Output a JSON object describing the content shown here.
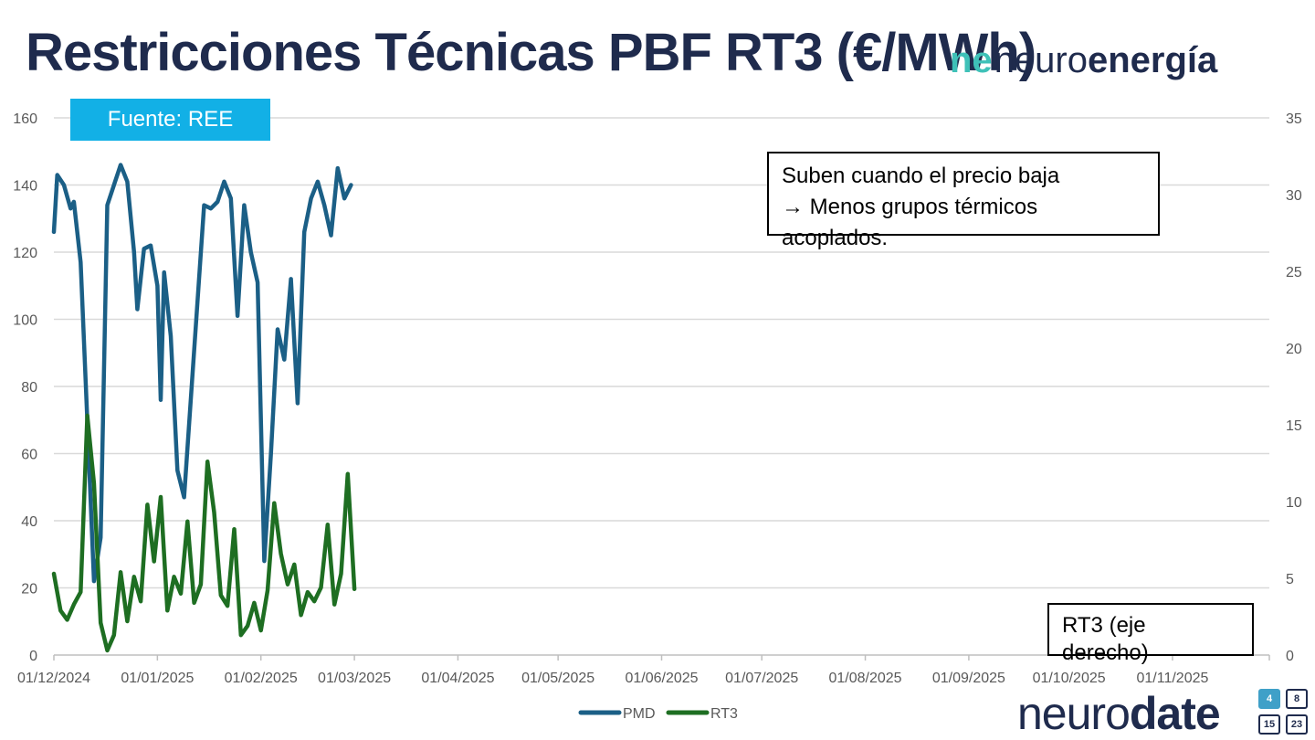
{
  "header": {
    "title": "Restricciones Técnicas PBF RT3 (€/MWh)",
    "brand_prefix": "ne",
    "brand_light": "neuro",
    "brand_bold": "energía"
  },
  "source_label": "Fuente: REE",
  "annotation": {
    "line1": "Suben cuando el precio baja",
    "line2": "→ Menos grupos térmicos",
    "line3": "acoplados."
  },
  "axis_note": {
    "line1": "RT3 (eje",
    "line2": "derecho)"
  },
  "footer": {
    "logo_light": "neuro",
    "logo_bold": "date",
    "calendar": [
      "4",
      "8",
      "15",
      "23"
    ]
  },
  "colors": {
    "pmd": "#1b5f86",
    "rt3": "#1e6e22",
    "grid": "#d9d9d9",
    "axis_text": "#595959",
    "brand_dark": "#1f2b4d",
    "accent_blue": "#12b0e6"
  },
  "chart_data": {
    "type": "line",
    "title": "Restricciones Técnicas PBF RT3 (€/MWh)",
    "x_tick_labels": [
      "01/12/2024",
      "01/01/2025",
      "01/02/2025",
      "01/03/2025",
      "01/04/2025",
      "01/05/2025",
      "01/06/2025",
      "01/07/2025",
      "01/08/2025",
      "01/09/2025",
      "01/10/2025",
      "01/11/2025"
    ],
    "x_range": [
      "01/12/2024",
      "30/11/2025"
    ],
    "y_left": {
      "min": 0,
      "max": 160,
      "ticks": [
        0,
        20,
        40,
        60,
        80,
        100,
        120,
        140,
        160
      ]
    },
    "y_right": {
      "min": 0,
      "max": 35,
      "ticks": [
        0,
        5,
        10,
        15,
        20,
        25,
        30,
        35
      ]
    },
    "grid": true,
    "legend_position": "bottom",
    "series": [
      {
        "name": "PMD",
        "axis": "left",
        "points": [
          [
            "2024-12-01",
            126
          ],
          [
            "2024-12-02",
            143
          ],
          [
            "2024-12-04",
            140
          ],
          [
            "2024-12-06",
            133
          ],
          [
            "2024-12-07",
            135
          ],
          [
            "2024-12-09",
            117
          ],
          [
            "2024-12-11",
            70
          ],
          [
            "2024-12-13",
            22
          ],
          [
            "2024-12-15",
            35
          ],
          [
            "2024-12-17",
            134
          ],
          [
            "2024-12-19",
            140
          ],
          [
            "2024-12-21",
            146
          ],
          [
            "2024-12-23",
            141
          ],
          [
            "2024-12-25",
            120
          ],
          [
            "2024-12-26",
            103
          ],
          [
            "2024-12-28",
            121
          ],
          [
            "2024-12-30",
            122
          ],
          [
            "2025-01-01",
            110
          ],
          [
            "2025-01-02",
            76
          ],
          [
            "2025-01-03",
            114
          ],
          [
            "2025-01-05",
            95
          ],
          [
            "2025-01-07",
            55
          ],
          [
            "2025-01-09",
            47
          ],
          [
            "2025-01-11",
            76
          ],
          [
            "2025-01-13",
            105
          ],
          [
            "2025-01-15",
            134
          ],
          [
            "2025-01-17",
            133
          ],
          [
            "2025-01-19",
            135
          ],
          [
            "2025-01-21",
            141
          ],
          [
            "2025-01-23",
            136
          ],
          [
            "2025-01-25",
            101
          ],
          [
            "2025-01-27",
            134
          ],
          [
            "2025-01-29",
            120
          ],
          [
            "2025-01-31",
            111
          ],
          [
            "2025-02-02",
            28
          ],
          [
            "2025-02-04",
            60
          ],
          [
            "2025-02-06",
            97
          ],
          [
            "2025-02-08",
            88
          ],
          [
            "2025-02-10",
            112
          ],
          [
            "2025-02-12",
            75
          ],
          [
            "2025-02-14",
            126
          ],
          [
            "2025-02-16",
            136
          ],
          [
            "2025-02-18",
            141
          ],
          [
            "2025-02-20",
            134
          ],
          [
            "2025-02-22",
            125
          ],
          [
            "2025-02-24",
            145
          ],
          [
            "2025-02-26",
            136
          ],
          [
            "2025-02-28",
            140
          ]
        ]
      },
      {
        "name": "RT3",
        "axis": "right",
        "points": [
          [
            "2024-12-01",
            5.3
          ],
          [
            "2024-12-03",
            2.9
          ],
          [
            "2024-12-05",
            2.3
          ],
          [
            "2024-12-07",
            3.3
          ],
          [
            "2024-12-09",
            4.1
          ],
          [
            "2024-12-11",
            15.6
          ],
          [
            "2024-12-13",
            11.2
          ],
          [
            "2024-12-15",
            2.1
          ],
          [
            "2024-12-17",
            0.3
          ],
          [
            "2024-12-19",
            1.3
          ],
          [
            "2024-12-21",
            5.4
          ],
          [
            "2024-12-23",
            2.2
          ],
          [
            "2024-12-25",
            5.1
          ],
          [
            "2024-12-27",
            3.5
          ],
          [
            "2024-12-29",
            9.8
          ],
          [
            "2024-12-31",
            6.1
          ],
          [
            "2025-01-02",
            10.3
          ],
          [
            "2025-01-04",
            2.9
          ],
          [
            "2025-01-06",
            5.1
          ],
          [
            "2025-01-08",
            4.0
          ],
          [
            "2025-01-10",
            8.7
          ],
          [
            "2025-01-12",
            3.4
          ],
          [
            "2025-01-14",
            4.6
          ],
          [
            "2025-01-16",
            12.6
          ],
          [
            "2025-01-18",
            9.3
          ],
          [
            "2025-01-20",
            3.9
          ],
          [
            "2025-01-22",
            3.2
          ],
          [
            "2025-01-24",
            8.2
          ],
          [
            "2025-01-26",
            1.3
          ],
          [
            "2025-01-28",
            1.9
          ],
          [
            "2025-01-30",
            3.4
          ],
          [
            "2025-02-01",
            1.6
          ],
          [
            "2025-02-03",
            4.2
          ],
          [
            "2025-02-05",
            9.9
          ],
          [
            "2025-02-07",
            6.6
          ],
          [
            "2025-02-09",
            4.6
          ],
          [
            "2025-02-11",
            5.9
          ],
          [
            "2025-02-13",
            2.6
          ],
          [
            "2025-02-15",
            4.1
          ],
          [
            "2025-02-17",
            3.5
          ],
          [
            "2025-02-19",
            4.4
          ],
          [
            "2025-02-21",
            8.5
          ],
          [
            "2025-02-23",
            3.3
          ],
          [
            "2025-02-25",
            5.3
          ],
          [
            "2025-02-27",
            11.8
          ],
          [
            "2025-03-01",
            4.3
          ]
        ]
      }
    ]
  }
}
